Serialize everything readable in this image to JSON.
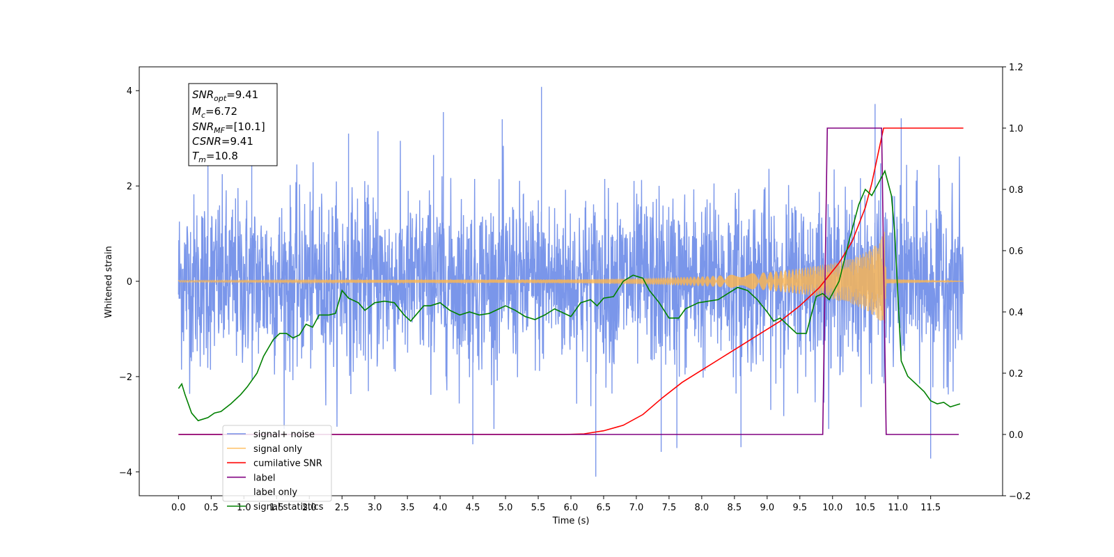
{
  "chart_data": {
    "type": "line",
    "xlabel": "Time (s)",
    "ylabel": "Whitened strain",
    "xlim": [
      -0.6,
      12.6
    ],
    "ylim": [
      -4.5,
      4.5
    ],
    "y2lim": [
      -0.2,
      1.2
    ],
    "x_ticks": [
      "0.0",
      "0.5",
      "1.0",
      "1.5",
      "2.0",
      "2.5",
      "3.0",
      "3.5",
      "4.0",
      "4.5",
      "5.0",
      "5.5",
      "6.0",
      "6.5",
      "7.0",
      "7.5",
      "8.0",
      "8.5",
      "9.0",
      "9.5",
      "10.0",
      "10.5",
      "11.0",
      "11.5"
    ],
    "y_ticks": [
      "4",
      "2",
      "0",
      "−2",
      "−4"
    ],
    "y2_ticks": [
      "1.2",
      "1.0",
      "0.8",
      "0.6",
      "0.4",
      "0.2",
      "0.0",
      "−0.2"
    ],
    "grid": false,
    "legend_position": "lower-left",
    "annotation": {
      "snr_opt": {
        "sym": "SNR",
        "sub": "opt",
        "val": "=9.41"
      },
      "mc": {
        "sym": "M",
        "sub": "c",
        "val": "=6.72"
      },
      "snr_mf": {
        "sym": "SNR",
        "sub": "MF",
        "val": "=[10.1]"
      },
      "csnr": {
        "sym": "CSNR",
        "sub": "",
        "val": "=9.41"
      },
      "tm": {
        "sym": "T",
        "sub": "m",
        "val": "=10.8"
      }
    },
    "series": [
      {
        "name": "signal+ noise",
        "color": "#4169e1",
        "axis": "left",
        "noise_amplitude_sigma": 0.9,
        "x_range": [
          0,
          12
        ],
        "strong_spikes": [
          [
            5.55,
            4.08
          ],
          [
            6.38,
            -4.1
          ],
          [
            10.65,
            3.72
          ],
          [
            11.5,
            -3.72
          ],
          [
            4.5,
            -3.42
          ],
          [
            7.38,
            -3.58
          ],
          [
            7.62,
            -3.5
          ],
          [
            8.6,
            -3.48
          ],
          [
            4.05,
            3.55
          ],
          [
            4.95,
            3.4
          ],
          [
            11.05,
            3.42
          ],
          [
            0.45,
            3.05
          ],
          [
            2.6,
            3.1
          ],
          [
            3.05,
            3.15
          ],
          [
            3.9,
            2.65
          ],
          [
            1.12,
            3.02
          ]
        ]
      },
      {
        "name": "signal only",
        "color": "#ffb74d",
        "axis": "left",
        "envelope": [
          [
            0,
            0.02
          ],
          [
            6,
            0.04
          ],
          [
            7,
            0.06
          ],
          [
            8,
            0.1
          ],
          [
            8.5,
            0.14
          ],
          [
            9,
            0.19
          ],
          [
            9.5,
            0.27
          ],
          [
            10,
            0.38
          ],
          [
            10.3,
            0.48
          ],
          [
            10.5,
            0.6
          ],
          [
            10.7,
            0.8
          ],
          [
            10.8,
            1.05
          ],
          [
            10.82,
            0.05
          ],
          [
            12,
            0.0
          ]
        ]
      },
      {
        "name": "cumilative SNR",
        "color": "#ff0000",
        "axis": "right",
        "points": [
          [
            0,
            0
          ],
          [
            5.9,
            0
          ],
          [
            6.2,
            0.002
          ],
          [
            6.5,
            0.012
          ],
          [
            6.8,
            0.03
          ],
          [
            7.1,
            0.065
          ],
          [
            7.4,
            0.12
          ],
          [
            7.7,
            0.17
          ],
          [
            8.0,
            0.21
          ],
          [
            8.3,
            0.25
          ],
          [
            8.6,
            0.29
          ],
          [
            8.9,
            0.33
          ],
          [
            9.2,
            0.37
          ],
          [
            9.5,
            0.42
          ],
          [
            9.8,
            0.48
          ],
          [
            10.1,
            0.56
          ],
          [
            10.3,
            0.63
          ],
          [
            10.5,
            0.74
          ],
          [
            10.6,
            0.82
          ],
          [
            10.7,
            0.92
          ],
          [
            10.78,
            1.0
          ],
          [
            12,
            1.0
          ]
        ]
      },
      {
        "name": "label",
        "color": "#800080",
        "axis": "right",
        "points": [
          [
            0,
            0
          ],
          [
            9.85,
            0
          ],
          [
            9.92,
            1.0
          ],
          [
            10.75,
            1.0
          ],
          [
            10.82,
            0
          ],
          [
            11.93,
            0
          ]
        ]
      },
      {
        "name": "label only",
        "color": "#cccccc",
        "axis": "right",
        "hidden": true,
        "points": []
      },
      {
        "name": "signal statistics",
        "color": "#008000",
        "axis": "right",
        "points": [
          [
            0,
            0.15
          ],
          [
            0.05,
            0.165
          ],
          [
            0.1,
            0.13
          ],
          [
            0.2,
            0.07
          ],
          [
            0.3,
            0.045
          ],
          [
            0.45,
            0.055
          ],
          [
            0.55,
            0.07
          ],
          [
            0.65,
            0.075
          ],
          [
            0.8,
            0.1
          ],
          [
            0.95,
            0.13
          ],
          [
            1.05,
            0.155
          ],
          [
            1.2,
            0.2
          ],
          [
            1.3,
            0.255
          ],
          [
            1.45,
            0.31
          ],
          [
            1.55,
            0.33
          ],
          [
            1.65,
            0.33
          ],
          [
            1.75,
            0.315
          ],
          [
            1.85,
            0.325
          ],
          [
            1.95,
            0.36
          ],
          [
            2.05,
            0.35
          ],
          [
            2.15,
            0.39
          ],
          [
            2.3,
            0.39
          ],
          [
            2.4,
            0.395
          ],
          [
            2.5,
            0.47
          ],
          [
            2.6,
            0.445
          ],
          [
            2.75,
            0.43
          ],
          [
            2.85,
            0.405
          ],
          [
            3.0,
            0.43
          ],
          [
            3.15,
            0.435
          ],
          [
            3.3,
            0.43
          ],
          [
            3.45,
            0.39
          ],
          [
            3.55,
            0.37
          ],
          [
            3.75,
            0.42
          ],
          [
            3.85,
            0.42
          ],
          [
            4.0,
            0.43
          ],
          [
            4.15,
            0.405
          ],
          [
            4.3,
            0.39
          ],
          [
            4.45,
            0.4
          ],
          [
            4.6,
            0.39
          ],
          [
            4.75,
            0.395
          ],
          [
            4.9,
            0.41
          ],
          [
            5.0,
            0.42
          ],
          [
            5.15,
            0.405
          ],
          [
            5.3,
            0.385
          ],
          [
            5.45,
            0.375
          ],
          [
            5.6,
            0.39
          ],
          [
            5.75,
            0.41
          ],
          [
            5.85,
            0.4
          ],
          [
            6.0,
            0.385
          ],
          [
            6.15,
            0.43
          ],
          [
            6.3,
            0.44
          ],
          [
            6.4,
            0.42
          ],
          [
            6.5,
            0.445
          ],
          [
            6.65,
            0.45
          ],
          [
            6.8,
            0.5
          ],
          [
            6.95,
            0.52
          ],
          [
            7.1,
            0.51
          ],
          [
            7.2,
            0.47
          ],
          [
            7.35,
            0.43
          ],
          [
            7.5,
            0.38
          ],
          [
            7.65,
            0.38
          ],
          [
            7.75,
            0.41
          ],
          [
            7.85,
            0.42
          ],
          [
            7.95,
            0.43
          ],
          [
            8.1,
            0.435
          ],
          [
            8.25,
            0.44
          ],
          [
            8.4,
            0.46
          ],
          [
            8.55,
            0.48
          ],
          [
            8.7,
            0.47
          ],
          [
            8.85,
            0.44
          ],
          [
            9.0,
            0.4
          ],
          [
            9.1,
            0.37
          ],
          [
            9.2,
            0.38
          ],
          [
            9.3,
            0.36
          ],
          [
            9.45,
            0.33
          ],
          [
            9.6,
            0.33
          ],
          [
            9.75,
            0.45
          ],
          [
            9.85,
            0.46
          ],
          [
            9.95,
            0.44
          ],
          [
            10.1,
            0.5
          ],
          [
            10.25,
            0.63
          ],
          [
            10.4,
            0.75
          ],
          [
            10.5,
            0.8
          ],
          [
            10.6,
            0.78
          ],
          [
            10.7,
            0.82
          ],
          [
            10.8,
            0.86
          ],
          [
            10.9,
            0.78
          ],
          [
            10.95,
            0.66
          ],
          [
            11.05,
            0.24
          ],
          [
            11.15,
            0.19
          ],
          [
            11.25,
            0.17
          ],
          [
            11.4,
            0.14
          ],
          [
            11.5,
            0.11
          ],
          [
            11.6,
            0.1
          ],
          [
            11.7,
            0.105
          ],
          [
            11.8,
            0.09
          ],
          [
            11.95,
            0.1
          ]
        ]
      }
    ]
  }
}
